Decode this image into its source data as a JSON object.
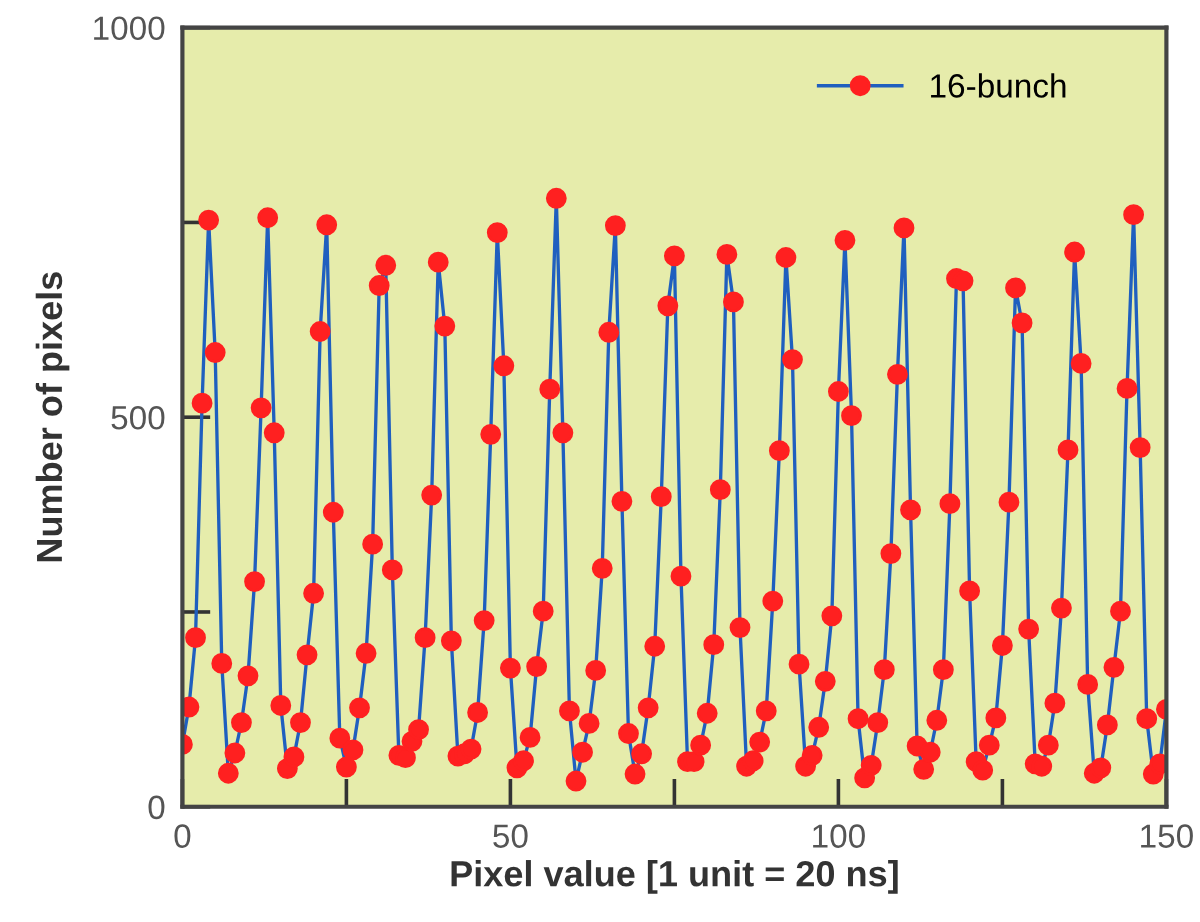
{
  "chart_data": {
    "type": "line",
    "xlabel": "Pixel value [1 unit = 20 ns]",
    "ylabel": "Number of pixels",
    "xlim": [
      0,
      150
    ],
    "ylim": [
      0,
      1000
    ],
    "xticks": [
      0,
      {
        "value": 25,
        "label": null
      },
      50,
      {
        "value": 75,
        "label": null
      },
      100,
      {
        "value": 125,
        "label": null
      },
      150
    ],
    "yticks": [
      0,
      {
        "value": 250,
        "label": null
      },
      500,
      {
        "value": 750,
        "label": null
      },
      1000
    ],
    "grid": false,
    "legend": "top right",
    "marker": "circle",
    "line_style": "solid",
    "series": [
      {
        "name": "16-bunch",
        "color": "#ff2020",
        "x": [
          0,
          1,
          2,
          3,
          4,
          5,
          6,
          7,
          8,
          9,
          10,
          11,
          12,
          13,
          14,
          15,
          16,
          17,
          18,
          19,
          20,
          21,
          22,
          23,
          24,
          25,
          26,
          27,
          28,
          29,
          30,
          31,
          32,
          33,
          34,
          35,
          36,
          37,
          38,
          39,
          40,
          41,
          42,
          43,
          44,
          45,
          46,
          47,
          48,
          49,
          50,
          51,
          52,
          53,
          54,
          55,
          56,
          57,
          58,
          59,
          60,
          61,
          62,
          63,
          64,
          65,
          66,
          67,
          68,
          69,
          70,
          71,
          72,
          73,
          74,
          75,
          76,
          77,
          78,
          79,
          80,
          81,
          82,
          83,
          84,
          85,
          86,
          87,
          88,
          89,
          90,
          91,
          92,
          93,
          94,
          95,
          96,
          97,
          98,
          99,
          100,
          101,
          102,
          103,
          104,
          105,
          106,
          107,
          108,
          109,
          110,
          111,
          112,
          113,
          114,
          115,
          116,
          117,
          118,
          119,
          120,
          121,
          122,
          123,
          124,
          125,
          126,
          127,
          128,
          129,
          130,
          131,
          132,
          133,
          134,
          135,
          136,
          137,
          138,
          139,
          140,
          141,
          142,
          143,
          144,
          145,
          146,
          147,
          148,
          149,
          150
        ],
        "values": [
          80,
          128,
          217,
          518,
          753,
          583,
          184,
          43,
          69,
          108,
          168,
          289,
          512,
          756,
          480,
          130,
          49,
          64,
          108,
          195,
          274,
          610,
          747,
          378,
          88,
          51,
          73,
          127,
          197,
          337,
          669,
          695,
          304,
          66,
          63,
          84,
          99,
          217,
          400,
          699,
          617,
          213,
          65,
          68,
          74,
          121,
          239,
          478,
          737,
          566,
          178,
          50,
          59,
          89,
          180,
          251,
          536,
          781,
          480,
          123,
          33,
          70,
          107,
          175,
          306,
          609,
          746,
          392,
          94,
          42,
          68,
          127,
          206,
          398,
          643,
          707,
          296,
          58,
          58,
          79,
          120,
          208,
          407,
          709,
          648,
          230,
          52,
          59,
          83,
          123,
          264,
          457,
          705,
          574,
          183,
          52,
          66,
          102,
          161,
          245,
          533,
          727,
          502,
          113,
          37,
          53,
          108,
          176,
          325,
          555,
          743,
          381,
          78,
          48,
          70,
          111,
          176,
          389,
          678,
          675,
          277,
          58,
          47,
          79,
          114,
          207,
          391,
          666,
          621,
          228,
          55,
          52,
          79,
          133,
          255,
          458,
          712,
          569,
          157,
          43,
          50,
          105,
          179,
          251,
          537,
          760,
          461,
          113,
          42,
          55,
          125
        ]
      }
    ]
  }
}
